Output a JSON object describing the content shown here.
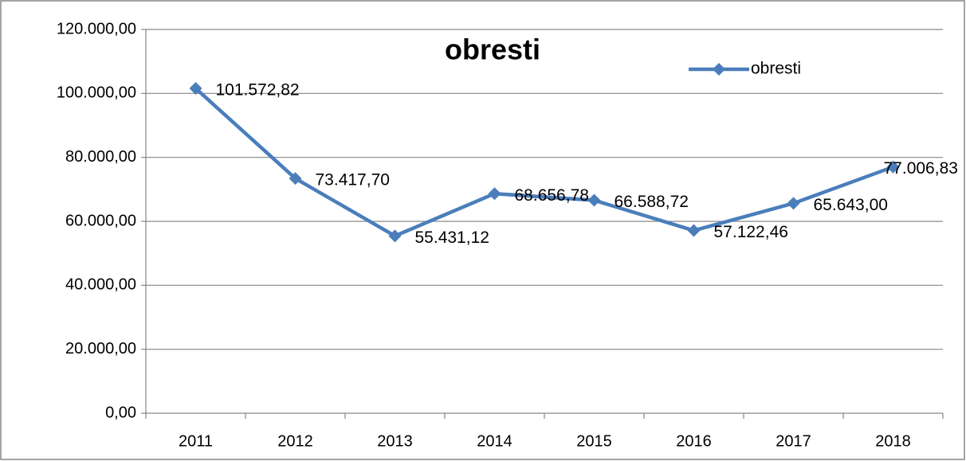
{
  "chart_data": {
    "type": "line",
    "title": "obresti",
    "categories": [
      "2011",
      "2012",
      "2013",
      "2014",
      "2015",
      "2016",
      "2017",
      "2018"
    ],
    "series": [
      {
        "name": "obresti",
        "color": "#4a7ebb",
        "values": [
          101572.82,
          73417.7,
          55431.12,
          68656.78,
          66588.72,
          57122.46,
          65643.0,
          77006.83
        ],
        "value_labels": [
          "101.572,82",
          "73.417,70",
          "55.431,12",
          "68.656,78",
          "66.588,72",
          "57.122,46",
          "65.643,00",
          "77.006,83"
        ]
      }
    ],
    "ylim": [
      0,
      120000
    ],
    "yticks": [
      {
        "value": 0,
        "label": "0,00"
      },
      {
        "value": 20000,
        "label": "20.000,00"
      },
      {
        "value": 40000,
        "label": "40.000,00"
      },
      {
        "value": 60000,
        "label": "60.000,00"
      },
      {
        "value": 80000,
        "label": "80.000,00"
      },
      {
        "value": 100000,
        "label": "100.000,00"
      },
      {
        "value": 120000,
        "label": "120.000,00"
      }
    ],
    "grid": true,
    "legend": "top-right"
  }
}
